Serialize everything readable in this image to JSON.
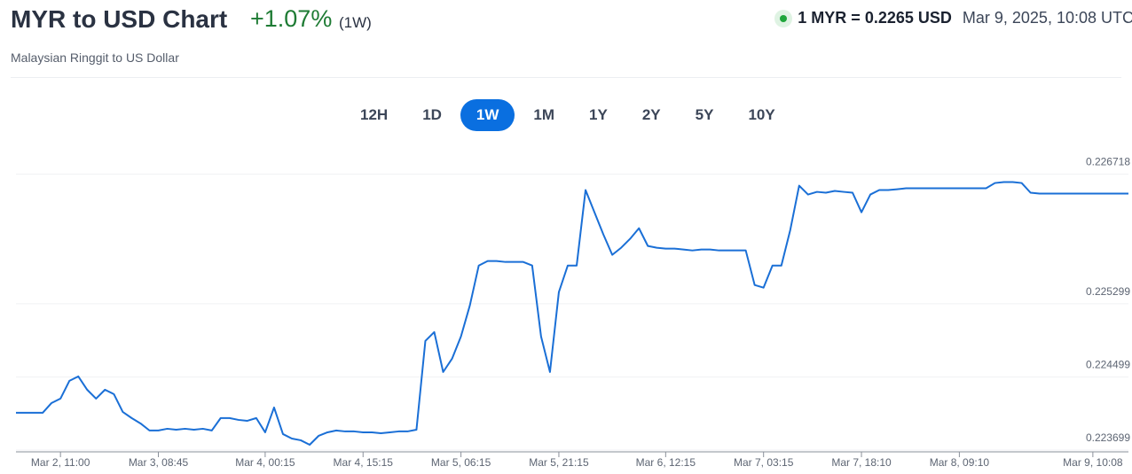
{
  "chart_data": {
    "type": "line",
    "title": "MYR to USD Chart",
    "change": "+1.07%",
    "period": "(1W)",
    "subtitle": "Malaysian Ringgit to US Dollar",
    "rate": "1 MYR = 0.2265 USD",
    "timestamp": "Mar 9, 2025, 10:08 UTC",
    "ranges": [
      "12H",
      "1D",
      "1W",
      "1M",
      "1Y",
      "2Y",
      "5Y",
      "10Y"
    ],
    "selected_range": "1W",
    "color": "#1a6fd6",
    "grid": true,
    "values": [
      0.224107,
      0.224107,
      0.224107,
      0.224107,
      0.224214,
      0.224262,
      0.224456,
      0.224505,
      0.224359,
      0.224262,
      0.224359,
      0.224311,
      0.224116,
      0.224049,
      0.22399,
      0.223913,
      0.223913,
      0.223932,
      0.223922,
      0.223932,
      0.223922,
      0.223932,
      0.223913,
      0.224049,
      0.224049,
      0.224029,
      0.224019,
      0.224049,
      0.223893,
      0.224165,
      0.223874,
      0.223825,
      0.223806,
      0.223757,
      0.223854,
      0.223893,
      0.223913,
      0.223903,
      0.223903,
      0.223893,
      0.223893,
      0.223883,
      0.223893,
      0.223903,
      0.223903,
      0.223922,
      0.224893,
      0.22499,
      0.224553,
      0.224699,
      0.224942,
      0.225282,
      0.225718,
      0.225767,
      0.225767,
      0.225757,
      0.225757,
      0.225757,
      0.225718,
      0.224942,
      0.224553,
      0.225427,
      0.225718,
      0.225718,
      0.226544,
      0.226301,
      0.226058,
      0.225835,
      0.225913,
      0.22601,
      0.226126,
      0.225932,
      0.225913,
      0.225903,
      0.225903,
      0.225893,
      0.225883,
      0.225893,
      0.225893,
      0.225883,
      0.225883,
      0.225883,
      0.225883,
      0.225505,
      0.225476,
      0.225718,
      0.225718,
      0.226107,
      0.226592,
      0.226495,
      0.226524,
      0.226515,
      0.226534,
      0.226524,
      0.226515,
      0.226301,
      0.226495,
      0.226544,
      0.226544,
      0.226553,
      0.226563,
      0.226563,
      0.226563,
      0.226563,
      0.226563,
      0.226563,
      0.226563,
      0.226563,
      0.226563,
      0.226563,
      0.226621,
      0.226631,
      0.226631,
      0.226621,
      0.226515,
      0.226505,
      0.226505,
      0.226505,
      0.226505,
      0.226505,
      0.226505,
      0.226505,
      0.226505,
      0.226505,
      0.226505,
      0.226505
    ],
    "xlim": [
      0,
      125
    ],
    "xticks": [
      {
        "value": 5,
        "label": "Mar 2, 11:00"
      },
      {
        "value": 16,
        "label": "Mar 3, 08:45"
      },
      {
        "value": 28,
        "label": "Mar 4, 00:15"
      },
      {
        "value": 39,
        "label": "Mar 4, 15:15"
      },
      {
        "value": 50,
        "label": "Mar 5, 06:15"
      },
      {
        "value": 61,
        "label": "Mar 5, 21:15"
      },
      {
        "value": 73,
        "label": "Mar 6, 12:15"
      },
      {
        "value": 84,
        "label": "Mar 7, 03:15"
      },
      {
        "value": 95,
        "label": "Mar 7, 18:10"
      },
      {
        "value": 106,
        "label": "Mar 8, 09:10"
      },
      {
        "value": 121,
        "label": "Mar 9, 10:08"
      }
    ],
    "ylim": [
      0.22366,
      0.22683
    ],
    "yticks": [
      0.223699,
      0.224499,
      0.225299,
      0.226718
    ]
  }
}
